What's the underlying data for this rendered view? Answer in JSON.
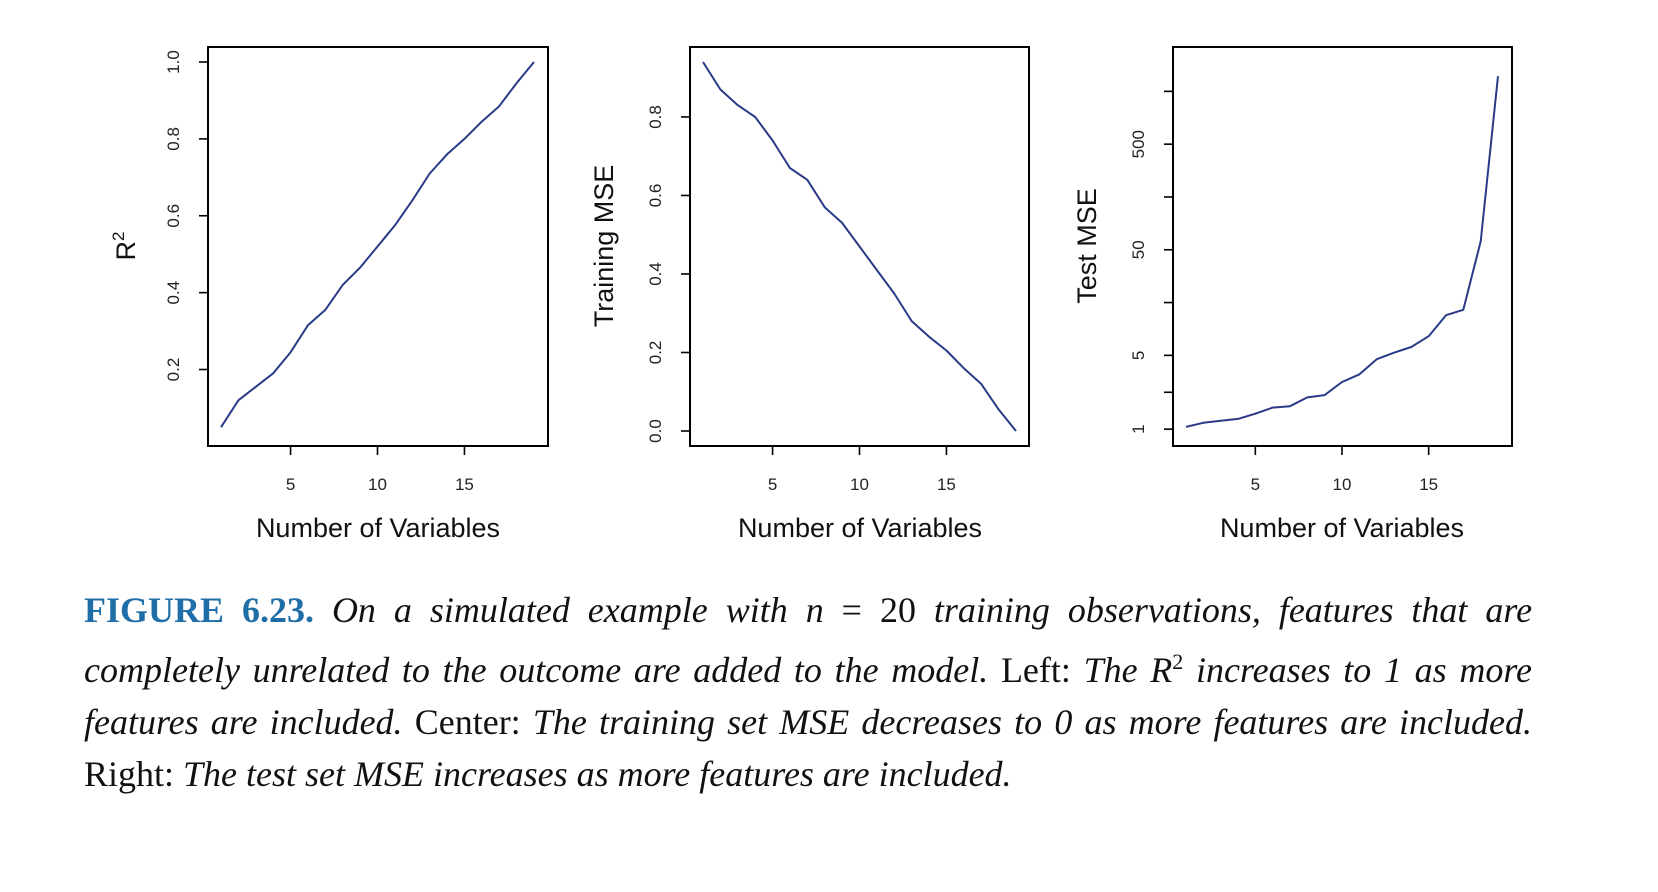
{
  "colors": {
    "series": "#2b3a87",
    "caption_label": "#1f6ea8"
  },
  "chart_data": [
    {
      "type": "line",
      "xlabel": "Number of Variables",
      "ylabel": "R",
      "ylabel_sup": "2",
      "xlim": [
        1,
        19
      ],
      "ylim": [
        0.04,
        1.0
      ],
      "xticks": [
        5,
        10,
        15
      ],
      "yticks": [
        0.2,
        0.4,
        0.6,
        0.8,
        1.0
      ],
      "ytick_labels": [
        "0.2",
        "0.4",
        "0.6",
        "0.8",
        "1.0"
      ],
      "scale": "linear",
      "x": [
        1,
        2,
        3,
        4,
        5,
        6,
        7,
        8,
        9,
        10,
        11,
        12,
        13,
        14,
        15,
        16,
        17,
        18,
        19
      ],
      "y": [
        0.05,
        0.12,
        0.155,
        0.19,
        0.245,
        0.315,
        0.355,
        0.42,
        0.465,
        0.52,
        0.575,
        0.64,
        0.71,
        0.76,
        0.8,
        0.845,
        0.885,
        0.945,
        1.0
      ]
    },
    {
      "type": "line",
      "xlabel": "Number of Variables",
      "ylabel": "Training MSE",
      "xlim": [
        1,
        19
      ],
      "ylim": [
        0,
        0.94
      ],
      "xticks": [
        5,
        10,
        15
      ],
      "yticks": [
        0.0,
        0.2,
        0.4,
        0.6,
        0.8
      ],
      "ytick_labels": [
        "0.0",
        "0.2",
        "0.4",
        "0.6",
        "0.8"
      ],
      "scale": "linear",
      "x": [
        1,
        2,
        3,
        4,
        5,
        6,
        7,
        8,
        9,
        10,
        11,
        12,
        13,
        14,
        15,
        16,
        17,
        18,
        19
      ],
      "y": [
        0.94,
        0.87,
        0.83,
        0.8,
        0.74,
        0.67,
        0.64,
        0.57,
        0.53,
        0.47,
        0.41,
        0.35,
        0.28,
        0.24,
        0.205,
        0.16,
        0.12,
        0.055,
        0.0
      ]
    },
    {
      "type": "line",
      "xlabel": "Number of Variables",
      "ylabel": "Test MSE",
      "xlim": [
        1,
        19
      ],
      "ylim": [
        0.9,
        3000
      ],
      "xticks": [
        5,
        10,
        15
      ],
      "yticks": [
        1,
        5,
        50,
        500
      ],
      "ytick_labels": [
        "1",
        "5",
        "50",
        "500"
      ],
      "scale": "log",
      "x": [
        1,
        2,
        3,
        4,
        5,
        6,
        7,
        8,
        9,
        10,
        11,
        12,
        13,
        14,
        15,
        16,
        17,
        18,
        19
      ],
      "y": [
        1.05,
        1.15,
        1.2,
        1.25,
        1.4,
        1.6,
        1.65,
        2.0,
        2.1,
        2.8,
        3.3,
        4.6,
        5.3,
        6.0,
        7.6,
        12.0,
        13.5,
        60.0,
        2200.0
      ]
    }
  ],
  "caption": {
    "label": "FIGURE 6.23.",
    "part1": "On a simulated example with",
    "math_n": "n",
    "equals": "=",
    "num": "20",
    "part2": "training observations, features that are completely unrelated to the outcome are added to the model.",
    "left_label": "Left:",
    "left_text_a": "The",
    "left_r": "R",
    "left_sup": "2",
    "left_text_b": "increases to 1 as more features are included.",
    "center_label": "Center:",
    "center_text": "The training set MSE decreases to 0 as more features are included.",
    "right_label": "Right:",
    "right_text": "The test set MSE increases as more features are included."
  }
}
